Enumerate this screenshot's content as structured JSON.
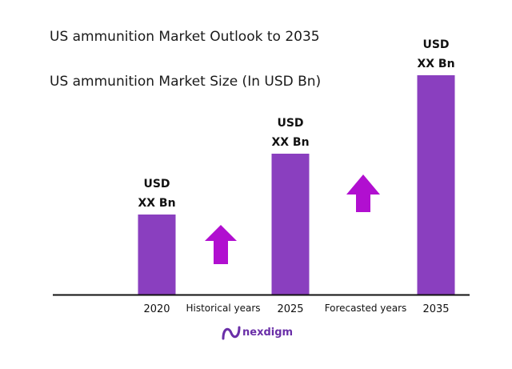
{
  "chart_data": {
    "type": "bar",
    "title": "US ammunition Market Outlook to 2035",
    "subtitle": "US ammunition Market Size (In USD Bn)",
    "categories": [
      "2020",
      "2025",
      "2035"
    ],
    "values": [
      1.0,
      1.76,
      2.74
    ],
    "value_labels": [
      [
        "USD",
        "XX Bn"
      ],
      [
        "USD",
        "XX Bn"
      ],
      [
        "USD",
        "XX Bn"
      ]
    ],
    "period_labels": [
      "Historical years",
      "Forecasted years"
    ],
    "bar_color": "#8a3fbf",
    "arrow_color": "#b10fd0",
    "grid": false,
    "legend": "none"
  },
  "brand": {
    "name": "nexdigm",
    "color": "#6a2fa8"
  }
}
